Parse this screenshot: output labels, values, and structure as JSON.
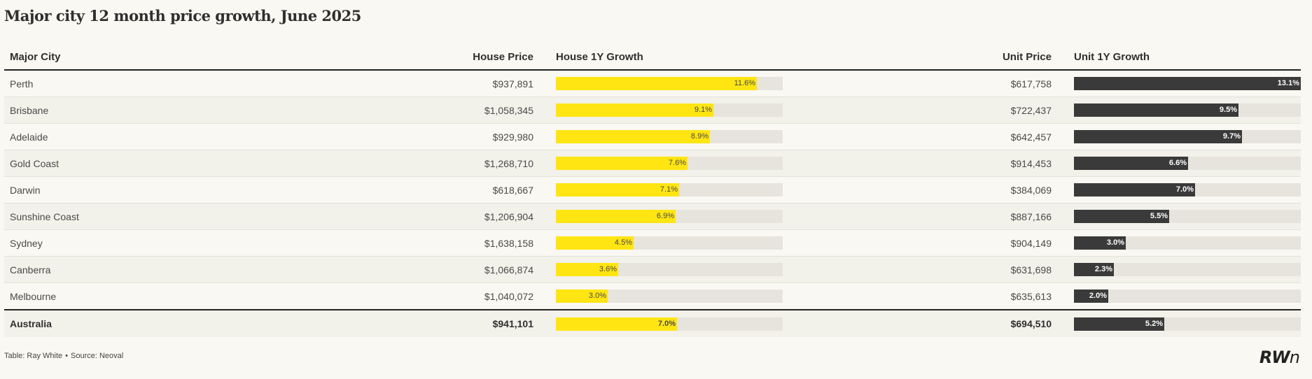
{
  "title": "Major city 12 month price growth, June 2025",
  "columns": {
    "city": "Major City",
    "house_price": "House Price",
    "house_growth": "House 1Y Growth",
    "unit_price": "Unit Price",
    "unit_growth": "Unit 1Y Growth"
  },
  "footer": {
    "table_credit": "Table: Ray White",
    "separator": "•",
    "source": "Source: Neoval"
  },
  "logo": {
    "main": "RW",
    "tail": "n"
  },
  "colors": {
    "house_bar": "#ffe512",
    "unit_bar": "#3a3a3a",
    "track": "#e6e4dd"
  },
  "chart_data": {
    "type": "table",
    "bar_scale_max": 13.1,
    "rows": [
      {
        "city": "Perth",
        "house_price": "$937,891",
        "house_growth": 11.6,
        "house_growth_label": "11.6%",
        "unit_price": "$617,758",
        "unit_growth": 13.1,
        "unit_growth_label": "13.1%"
      },
      {
        "city": "Brisbane",
        "house_price": "$1,058,345",
        "house_growth": 9.1,
        "house_growth_label": "9.1%",
        "unit_price": "$722,437",
        "unit_growth": 9.5,
        "unit_growth_label": "9.5%"
      },
      {
        "city": "Adelaide",
        "house_price": "$929,980",
        "house_growth": 8.9,
        "house_growth_label": "8.9%",
        "unit_price": "$642,457",
        "unit_growth": 9.7,
        "unit_growth_label": "9.7%"
      },
      {
        "city": "Gold Coast",
        "house_price": "$1,268,710",
        "house_growth": 7.6,
        "house_growth_label": "7.6%",
        "unit_price": "$914,453",
        "unit_growth": 6.6,
        "unit_growth_label": "6.6%"
      },
      {
        "city": "Darwin",
        "house_price": "$618,667",
        "house_growth": 7.1,
        "house_growth_label": "7.1%",
        "unit_price": "$384,069",
        "unit_growth": 7.0,
        "unit_growth_label": "7.0%"
      },
      {
        "city": "Sunshine Coast",
        "house_price": "$1,206,904",
        "house_growth": 6.9,
        "house_growth_label": "6.9%",
        "unit_price": "$887,166",
        "unit_growth": 5.5,
        "unit_growth_label": "5.5%"
      },
      {
        "city": "Sydney",
        "house_price": "$1,638,158",
        "house_growth": 4.5,
        "house_growth_label": "4.5%",
        "unit_price": "$904,149",
        "unit_growth": 3.0,
        "unit_growth_label": "3.0%"
      },
      {
        "city": "Canberra",
        "house_price": "$1,066,874",
        "house_growth": 3.6,
        "house_growth_label": "3.6%",
        "unit_price": "$631,698",
        "unit_growth": 2.3,
        "unit_growth_label": "2.3%"
      },
      {
        "city": "Melbourne",
        "house_price": "$1,040,072",
        "house_growth": 3.0,
        "house_growth_label": "3.0%",
        "unit_price": "$635,613",
        "unit_growth": 2.0,
        "unit_growth_label": "2.0%"
      }
    ],
    "total": {
      "city": "Australia",
      "house_price": "$941,101",
      "house_growth": 7.0,
      "house_growth_label": "7.0%",
      "unit_price": "$694,510",
      "unit_growth": 5.2,
      "unit_growth_label": "5.2%"
    }
  }
}
